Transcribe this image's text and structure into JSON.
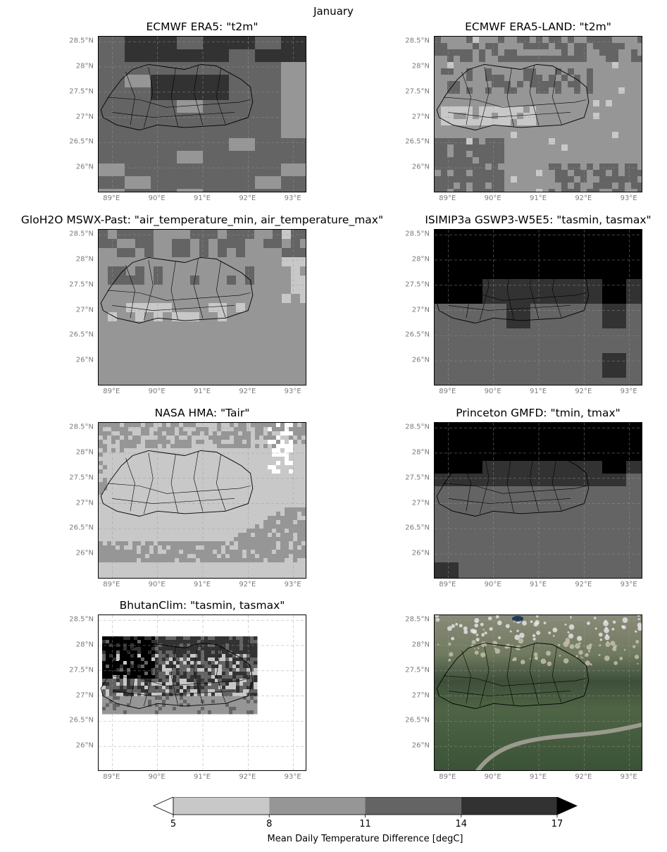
{
  "figure": {
    "title": "January"
  },
  "chart_data": {
    "type": "heatmap",
    "title": "January",
    "x_ticks": [
      "89°E",
      "90°E",
      "91°E",
      "92°E",
      "93°E"
    ],
    "y_ticks": [
      "28.5°N",
      "28°N",
      "27.5°N",
      "27°N",
      "26.5°N",
      "26°N"
    ],
    "xlim": [
      88.7,
      93.3
    ],
    "ylim": [
      25.5,
      28.6
    ],
    "panels": [
      {
        "title": "ECMWF ERA5: \"t2m\"",
        "dominant_class": "11-14",
        "max_class": "14-17"
      },
      {
        "title": "ECMWF ERA5-LAND: \"t2m\"",
        "dominant_class": "8-11",
        "min_class": "5-8"
      },
      {
        "title": "GloH2O MSWX-Past: \"air_temperature_min, air_temperature_max\"",
        "dominant_class": "8-11",
        "min_class": "5-8"
      },
      {
        "title": "ISIMIP3a GSWP3-W5E5: \"tasmin, tasmax\"",
        "dominant_class": "11-14",
        "max_class": ">17"
      },
      {
        "title": "NASA HMA: \"Tair\"",
        "dominant_class": "5-8",
        "min_class": "<5"
      },
      {
        "title": "Princeton GMFD: \"tmin, tmax\"",
        "dominant_class": "11-14",
        "max_class": ">17"
      },
      {
        "title": "BhutanClim: \"tasmin, tasmax\"",
        "dominant_class": "14-17",
        "min_class": "<5"
      },
      {
        "title": "",
        "note": "satellite basemap"
      }
    ],
    "colorbar": {
      "label": "Mean Daily Temperature Difference [degC]",
      "boundaries": [
        5,
        8,
        11,
        14,
        17
      ],
      "colors": [
        "#ffffff",
        "#c8c8c8",
        "#969696",
        "#646464",
        "#323232",
        "#000000"
      ],
      "extend": "both"
    }
  }
}
